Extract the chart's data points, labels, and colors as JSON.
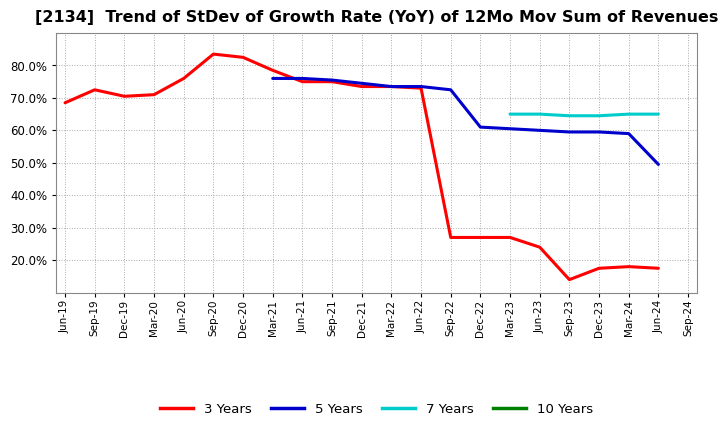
{
  "title": "[2134]  Trend of StDev of Growth Rate (YoY) of 12Mo Mov Sum of Revenues",
  "title_fontsize": 11.5,
  "background_color": "#ffffff",
  "plot_bg_color": "#ffffff",
  "grid_color": "#aaaaaa",
  "series": {
    "3 Years": {
      "color": "#ff0000",
      "x": [
        "Jun-19",
        "Sep-19",
        "Dec-19",
        "Mar-20",
        "Jun-20",
        "Sep-20",
        "Dec-20",
        "Mar-21",
        "Jun-21",
        "Sep-21",
        "Dec-21",
        "Mar-22",
        "Jun-22",
        "Sep-22",
        "Dec-22",
        "Mar-23",
        "Jun-23",
        "Sep-23",
        "Dec-23",
        "Mar-24",
        "Jun-24"
      ],
      "y": [
        68.5,
        72.5,
        70.5,
        71.0,
        76.0,
        83.5,
        82.5,
        78.5,
        75.0,
        75.0,
        73.5,
        73.5,
        73.0,
        27.0,
        27.0,
        27.0,
        24.0,
        14.0,
        17.5,
        18.0,
        17.5
      ]
    },
    "5 Years": {
      "color": "#0000cc",
      "x": [
        "Mar-21",
        "Jun-21",
        "Sep-21",
        "Dec-21",
        "Mar-22",
        "Jun-22",
        "Sep-22",
        "Dec-22",
        "Mar-23",
        "Jun-23",
        "Sep-23",
        "Dec-23",
        "Mar-24",
        "Jun-24"
      ],
      "y": [
        76.0,
        76.0,
        75.5,
        74.5,
        73.5,
        73.5,
        72.5,
        61.0,
        60.5,
        60.0,
        59.5,
        59.5,
        59.0,
        49.5
      ]
    },
    "7 Years": {
      "color": "#00cccc",
      "x": [
        "Mar-23",
        "Jun-23",
        "Sep-23",
        "Dec-23",
        "Mar-24",
        "Jun-24"
      ],
      "y": [
        65.0,
        65.0,
        64.5,
        64.5,
        65.0,
        65.0
      ]
    },
    "10 Years": {
      "color": "#008000",
      "x": [],
      "y": []
    }
  },
  "xtick_labels": [
    "Jun-19",
    "Sep-19",
    "Dec-19",
    "Mar-20",
    "Jun-20",
    "Sep-20",
    "Dec-20",
    "Mar-21",
    "Jun-21",
    "Sep-21",
    "Dec-21",
    "Mar-22",
    "Jun-22",
    "Sep-22",
    "Dec-22",
    "Mar-23",
    "Jun-23",
    "Sep-23",
    "Dec-23",
    "Mar-24",
    "Jun-24",
    "Sep-24"
  ],
  "ylim": [
    10.0,
    90.0
  ],
  "yticks": [
    20.0,
    30.0,
    40.0,
    50.0,
    60.0,
    70.0,
    80.0
  ],
  "legend_labels": [
    "3 Years",
    "5 Years",
    "7 Years",
    "10 Years"
  ],
  "legend_colors": [
    "#ff0000",
    "#0000cc",
    "#00cccc",
    "#008000"
  ]
}
